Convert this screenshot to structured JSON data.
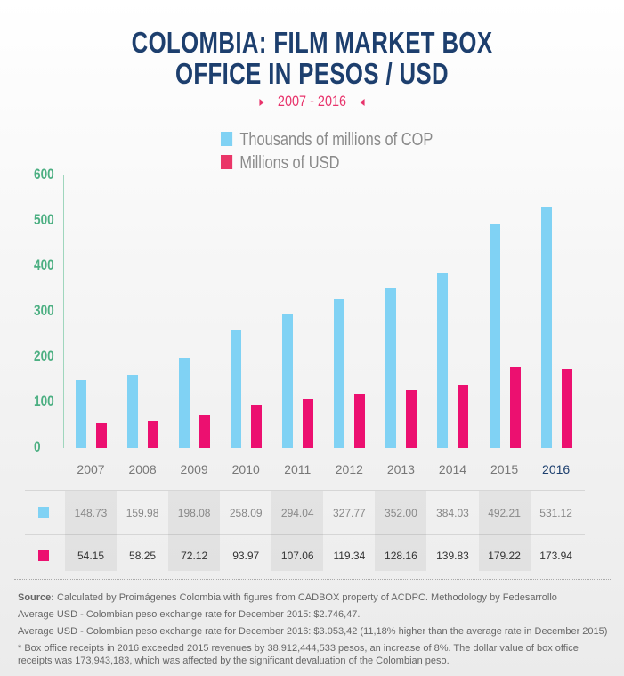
{
  "title_line1": "COLOMBIA: FILM MARKET BOX",
  "title_line2": "OFFICE IN PESOS / USD",
  "subtitle": "2007 - 2016",
  "colors": {
    "cop": "#80d2f4",
    "usd": "#ec1070",
    "legend_usd": "#ea3668",
    "axis": "#4caf82",
    "title": "#1d3f6e"
  },
  "chart_data": {
    "type": "bar",
    "title": "COLOMBIA: FILM MARKET BOX OFFICE IN PESOS / USD",
    "subtitle": "2007 - 2016",
    "categories": [
      "2007",
      "2008",
      "2009",
      "2010",
      "2011",
      "2012",
      "2013",
      "2014",
      "2015",
      "2016"
    ],
    "series": [
      {
        "name": "Thousands of millions of COP",
        "values": [
          148.73,
          159.98,
          198.08,
          258.09,
          294.04,
          327.77,
          352.0,
          384.03,
          492.21,
          531.12
        ],
        "labels": [
          "148.73",
          "159.98",
          "198.08",
          "258.09",
          "294.04",
          "327.77",
          "352.00",
          "384.03",
          "492.21",
          "531.12"
        ]
      },
      {
        "name": "Millions of USD",
        "values": [
          54.15,
          58.25,
          72.12,
          93.97,
          107.06,
          119.34,
          128.16,
          139.83,
          179.22,
          173.94
        ],
        "labels": [
          "54.15",
          "58.25",
          "72.12",
          "93.97",
          "107.06",
          "119.34",
          "128.16",
          "139.83",
          "179.22",
          "173.94"
        ]
      }
    ],
    "ylim": [
      0,
      600
    ],
    "yticks": [
      "0",
      "100",
      "200",
      "300",
      "400",
      "500",
      "600"
    ],
    "xlabel": "",
    "ylabel": "",
    "grid": false,
    "legend_position": "top-center"
  },
  "footer": {
    "source_label": "Source:",
    "source_text": " Calculated by Proimágenes Colombia with figures from CADBOX property of ACDPC. Methodology by Fedesarrollo",
    "note1": "Average USD - Colombian peso exchange rate for December 2015: $2.746,47.",
    "note2": "Average USD - Colombian peso exchange rate for December 2016: $3.053,42 (11,18% higher than the average rate in December 2015)",
    "note3": "* Box office receipts in 2016 exceeded 2015 revenues by 38,912,444,533 pesos, an increase of 8%. The dollar value of box office receipts was 173,943,183, which was affected by the significant devaluation of the Colombian peso."
  }
}
